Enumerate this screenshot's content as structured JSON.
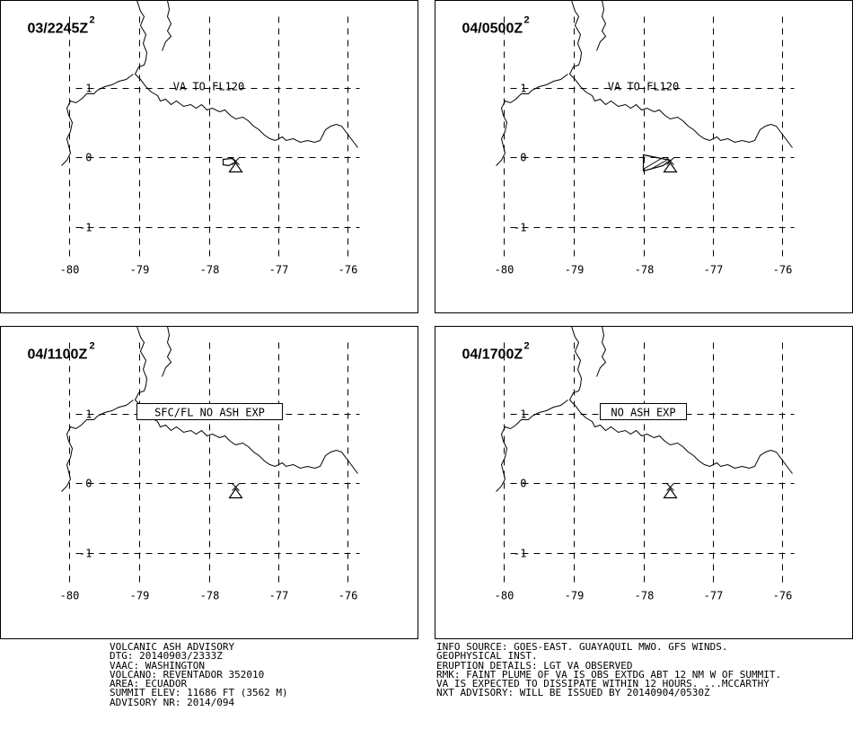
{
  "panels": [
    {
      "time_label": "03/2245Z",
      "superscript": "2",
      "annotation": "VA TO FL120",
      "annotation_boxed": false,
      "ash_polygon": "small"
    },
    {
      "time_label": "04/0500Z",
      "superscript": "2",
      "annotation": "VA TO FL120",
      "annotation_boxed": false,
      "ash_polygon": "large"
    },
    {
      "time_label": "04/1100Z",
      "superscript": "2",
      "annotation": "SFC/FL NO ASH EXP",
      "annotation_boxed": true,
      "ash_polygon": "none"
    },
    {
      "time_label": "04/1700Z",
      "superscript": "2",
      "annotation": "NO ASH EXP",
      "annotation_boxed": true,
      "ash_polygon": "none"
    }
  ],
  "axes": {
    "lon_ticks": [
      "-80",
      "-79",
      "-78",
      "-77",
      "-76"
    ],
    "lat_ticks": [
      "1",
      "0",
      "-1"
    ]
  },
  "volcano_icon": "volcano-triangle-icon",
  "advisory_left": [
    "VOLCANIC ASH ADVISORY",
    "DTG: 20140903/2333Z",
    "VAAC: WASHINGTON",
    "VOLCANO: REVENTADOR 352010",
    "AREA: ECUADOR",
    "SUMMIT ELEV: 11686 FT (3562 M)",
    "ADVISORY NR: 2014/094"
  ],
  "advisory_right": [
    "INFO SOURCE: GOES-EAST. GUAYAQUIL MWO. GFS WINDS.",
    "GEOPHYSICAL INST.",
    "ERUPTION DETAILS: LGT VA OBSERVED",
    "RMK: FAINT PLUME OF VA IS OBS EXTDG ABT 12 NM W OF SUMMIT.",
    "VA IS EXPECTED TO DISSIPATE WITHIN 12 HOURS. ...MCCARTHY",
    "NXT ADVISORY: WILL BE ISSUED BY 20140904/0530Z"
  ]
}
